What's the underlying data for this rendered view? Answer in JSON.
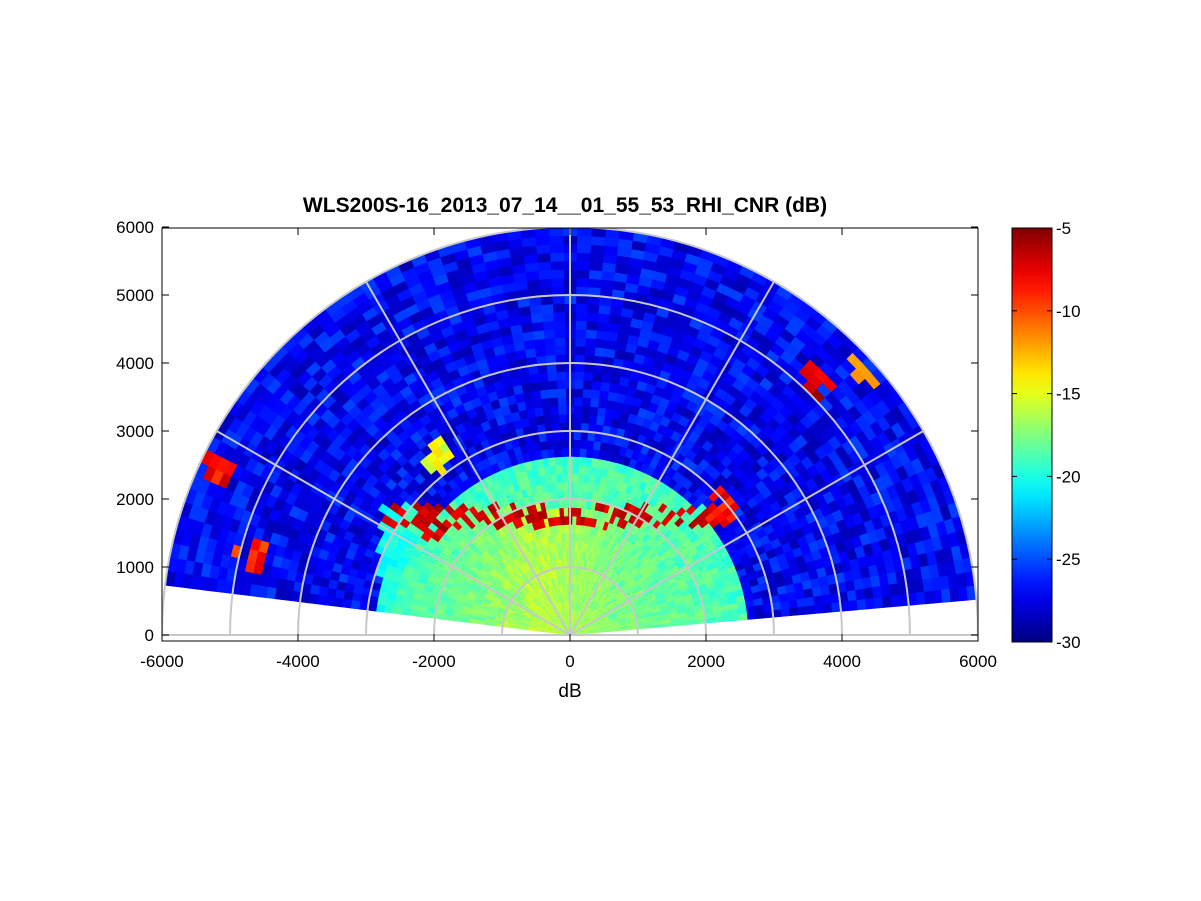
{
  "chart_data": {
    "type": "heatmap",
    "projection": "polar-rhi",
    "title": "WLS200S-16_2013_07_14__01_55_53_RHI_CNR (dB)",
    "xlabel": "dB",
    "ylabel": "",
    "xlim": [
      -6000,
      6000
    ],
    "ylim": [
      0,
      6000
    ],
    "xticks": [
      "-6000",
      "-4000",
      "-2000",
      "0",
      "2000",
      "4000",
      "6000"
    ],
    "yticks": [
      "0",
      "1000",
      "2000",
      "3000",
      "4000",
      "5000",
      "6000"
    ],
    "grid": true,
    "range_rings": [
      1000,
      2000,
      3000,
      4000,
      5000,
      6000
    ],
    "azimuth_lines_deg": [
      0,
      30,
      60,
      90,
      120,
      150,
      180
    ],
    "elevation_coverage_deg": [
      5,
      173
    ],
    "max_range": 6000,
    "colorbar": {
      "colormap": "jet",
      "min": -30,
      "max": -5,
      "ticks": [
        "-5",
        "-10",
        "-15",
        "-20",
        "-25",
        "-30"
      ],
      "colors": [
        "#000080",
        "#0000ff",
        "#0080ff",
        "#00ffff",
        "#80ff80",
        "#ffff00",
        "#ff8000",
        "#ff0000",
        "#800000"
      ]
    },
    "field_description": {
      "background_cnr_db": -27,
      "near_surface_cnr_db": -19,
      "aerosol_layer": {
        "height_m": [
          1300,
          1900
        ],
        "x_extent_m": [
          -2800,
          2000
        ],
        "cnr_db": -16,
        "top_edge_cnr_db": -6
      },
      "cloud_patches": [
        {
          "x_m": -5200,
          "y_m": 2400,
          "cnr_db": -8
        },
        {
          "x_m": -4700,
          "y_m": 1150,
          "cnr_db": -9
        },
        {
          "x_m": -2000,
          "y_m": 1650,
          "cnr_db": -7
        },
        {
          "x_m": 2200,
          "y_m": 1900,
          "cnr_db": -8
        },
        {
          "x_m": 3600,
          "y_m": 3700,
          "cnr_db": -7
        },
        {
          "x_m": 4400,
          "y_m": 3950,
          "cnr_db": -13
        },
        {
          "x_m": -1900,
          "y_m": 2650,
          "cnr_db": -15
        }
      ]
    }
  }
}
